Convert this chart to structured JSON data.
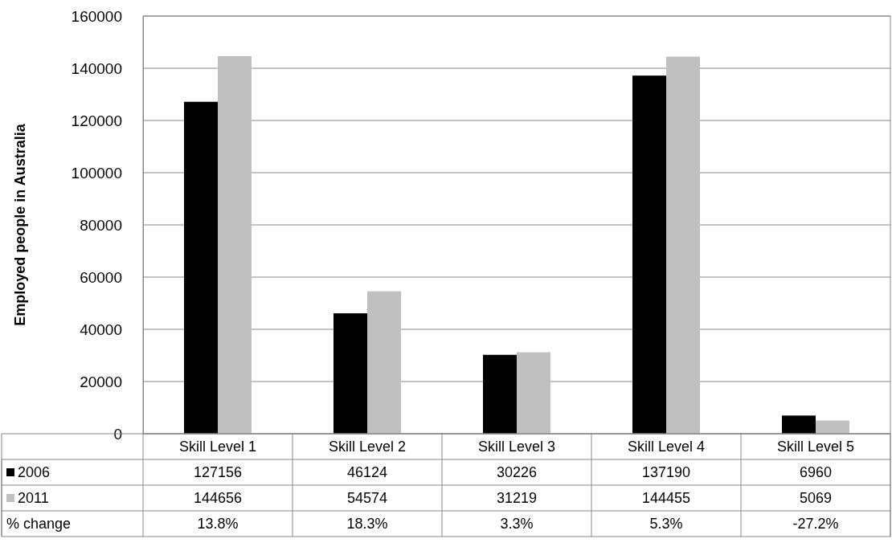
{
  "chart_data": {
    "type": "bar",
    "ylabel": "Employed people in Australia",
    "categories": [
      "Skill Level 1",
      "Skill Level 2",
      "Skill Level 3",
      "Skill Level 4",
      "Skill Level 5"
    ],
    "series": [
      {
        "name": "2006",
        "color": "#000000",
        "values": [
          127156,
          46124,
          30226,
          137190,
          6960
        ]
      },
      {
        "name": "2011",
        "color": "#c0c0c0",
        "values": [
          144656,
          54574,
          31219,
          144455,
          5069
        ]
      }
    ],
    "ylim": [
      0,
      160000
    ],
    "yticks": [
      0,
      20000,
      40000,
      60000,
      80000,
      100000,
      120000,
      140000,
      160000
    ],
    "grid": "y",
    "legend": "bottom",
    "data_labels": true,
    "annotations": [
      "% change",
      "13.8%",
      "18.3%",
      "3.3%",
      "5.3%",
      "-27.2%"
    ]
  }
}
